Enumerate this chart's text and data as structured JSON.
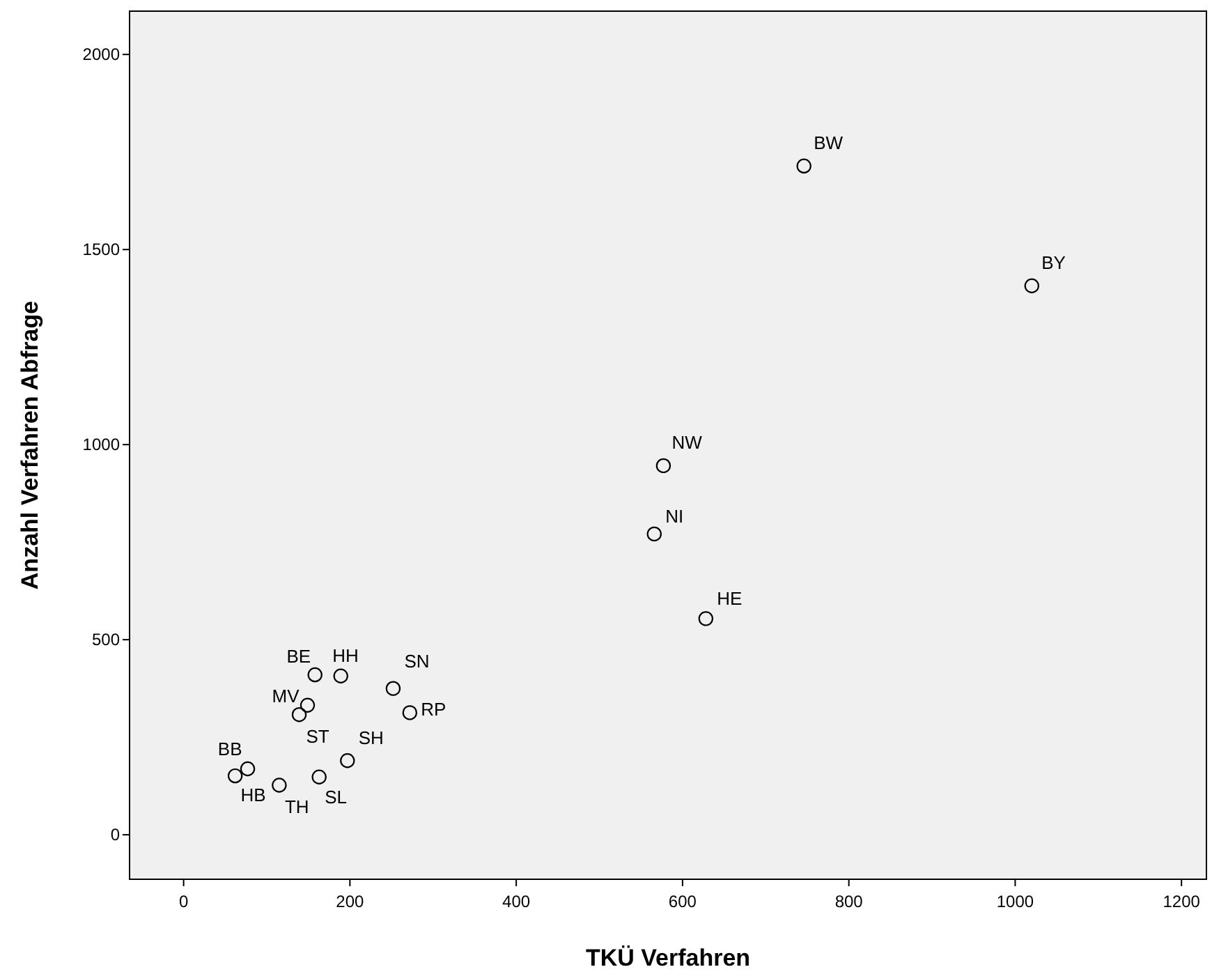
{
  "chart_data": {
    "type": "scatter",
    "xlabel": "TKÜ Verfahren",
    "ylabel": "Anzahl Verfahren Abfrage",
    "x": [
      746,
      1020,
      577,
      566,
      628,
      158,
      189,
      252,
      272,
      149,
      139,
      197,
      77,
      62,
      115,
      163
    ],
    "values": [
      1714,
      1407,
      946,
      771,
      554,
      410,
      407,
      375,
      313,
      332,
      308,
      190,
      169,
      151,
      127,
      148
    ],
    "color": "#000000",
    "marker": "circle",
    "grid": false,
    "xlim": [
      -65,
      1230
    ],
    "ylim": [
      -114,
      2111
    ],
    "xticks": [
      0,
      200,
      400,
      600,
      800,
      1000,
      1200
    ],
    "yticks": [
      0,
      500,
      1000,
      1500,
      2000
    ],
    "annotations": [
      {
        "text": "BW",
        "x": 746,
        "y": 1714
      },
      {
        "text": "BY",
        "x": 1020,
        "y": 1407
      },
      {
        "text": "NW",
        "x": 577,
        "y": 946
      },
      {
        "text": "NI",
        "x": 566,
        "y": 771
      },
      {
        "text": "HE",
        "x": 628,
        "y": 554
      },
      {
        "text": "BE",
        "x": 158,
        "y": 410
      },
      {
        "text": "HH",
        "x": 189,
        "y": 407
      },
      {
        "text": "SN",
        "x": 252,
        "y": 375
      },
      {
        "text": "RP",
        "x": 272,
        "y": 313
      },
      {
        "text": "MV",
        "x": 149,
        "y": 332
      },
      {
        "text": "ST",
        "x": 139,
        "y": 308
      },
      {
        "text": "SH",
        "x": 197,
        "y": 190
      },
      {
        "text": "BB",
        "x": 77,
        "y": 169
      },
      {
        "text": "HB",
        "x": 62,
        "y": 151
      },
      {
        "text": "TH",
        "x": 115,
        "y": 127
      },
      {
        "text": "SL",
        "x": 163,
        "y": 148
      }
    ]
  }
}
